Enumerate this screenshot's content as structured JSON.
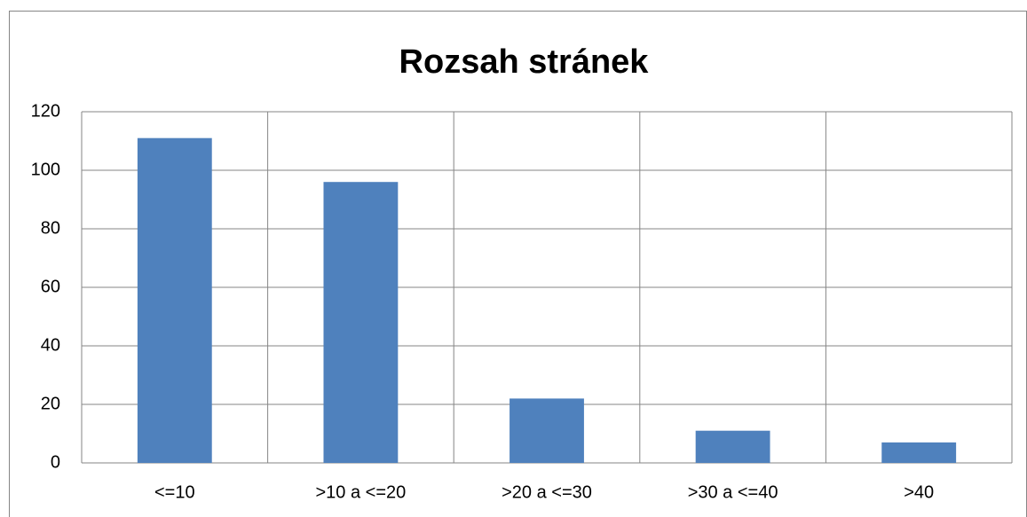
{
  "chart_data": {
    "type": "bar",
    "title": "Rozsah stránek",
    "categories": [
      "<=10",
      ">10 a <=20",
      ">20 a <=30",
      ">30 a <=40",
      ">40"
    ],
    "values": [
      111,
      96,
      22,
      11,
      7
    ],
    "color": "#4f81bd",
    "ylim": [
      0,
      120
    ],
    "yticks": [
      0,
      20,
      40,
      60,
      80,
      100,
      120
    ],
    "grid": true
  }
}
